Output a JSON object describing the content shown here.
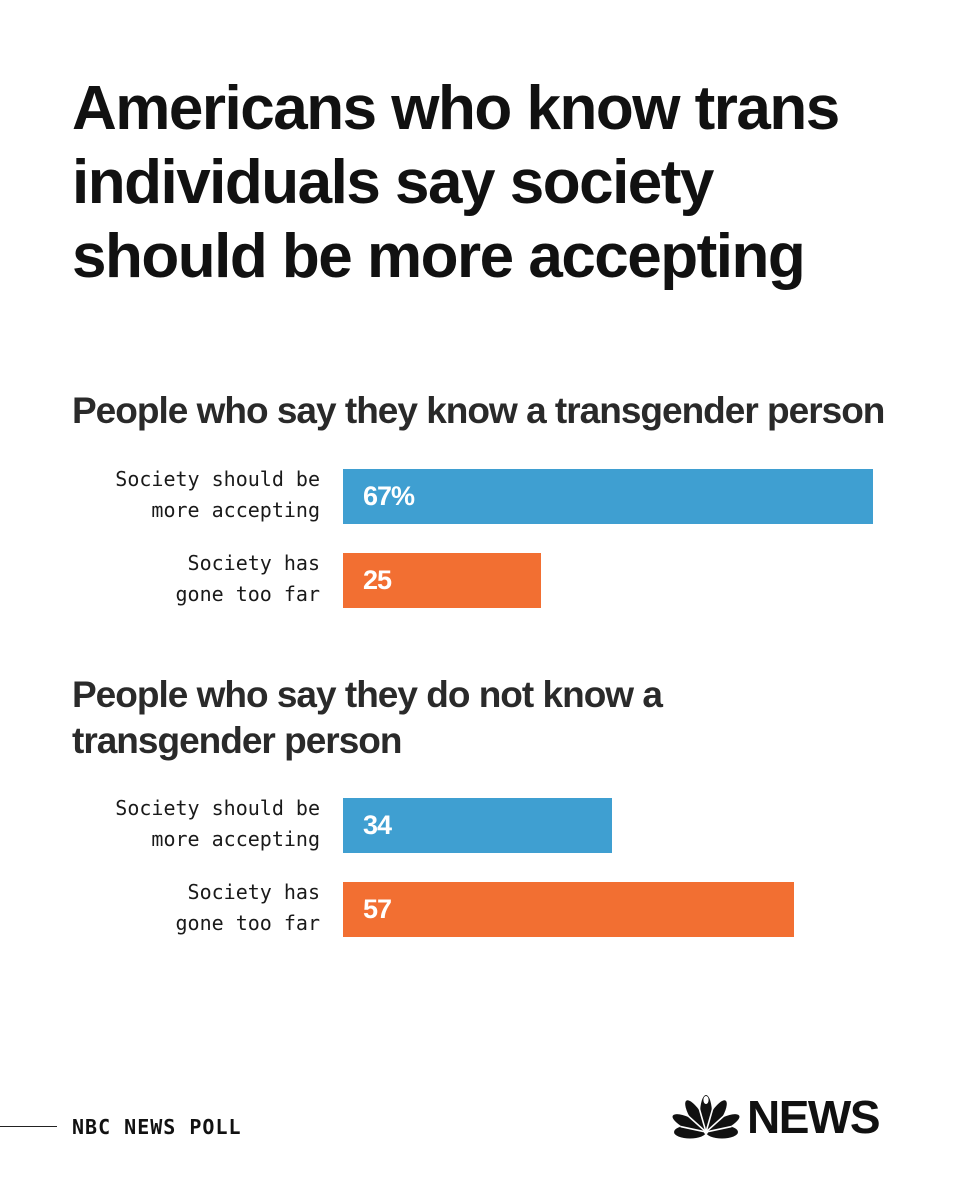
{
  "title_lines": [
    "Americans who know trans",
    "individuals say society",
    "should be more accepting"
  ],
  "colors": {
    "more_accepting": "#3f9fd1",
    "gone_too_far": "#f26f32"
  },
  "chart_data": [
    {
      "type": "bar",
      "orientation": "horizontal",
      "title_lines": [
        "People who say they know a transgender person"
      ],
      "categories": [
        {
          "lines": [
            "Society should be",
            "more accepting"
          ]
        },
        {
          "lines": [
            "Society has",
            "gone too far"
          ]
        }
      ],
      "values": [
        67,
        25
      ],
      "value_labels": [
        "67%",
        "25"
      ],
      "bar_colors": [
        "#3f9fd1",
        "#f26f32"
      ],
      "xlim": [
        0,
        100
      ],
      "grid": false
    },
    {
      "type": "bar",
      "orientation": "horizontal",
      "title_lines": [
        "People who say they do not know a",
        "transgender person"
      ],
      "categories": [
        {
          "lines": [
            "Society should be",
            "more accepting"
          ]
        },
        {
          "lines": [
            "Society has",
            "gone too far"
          ]
        }
      ],
      "values": [
        34,
        57
      ],
      "value_labels": [
        "34",
        "57"
      ],
      "bar_colors": [
        "#3f9fd1",
        "#f26f32"
      ],
      "xlim": [
        0,
        100
      ],
      "grid": false
    }
  ],
  "footer": {
    "source": "NBC NEWS POLL",
    "logo_text": "NEWS",
    "logo_icon": "peacock-icon"
  }
}
